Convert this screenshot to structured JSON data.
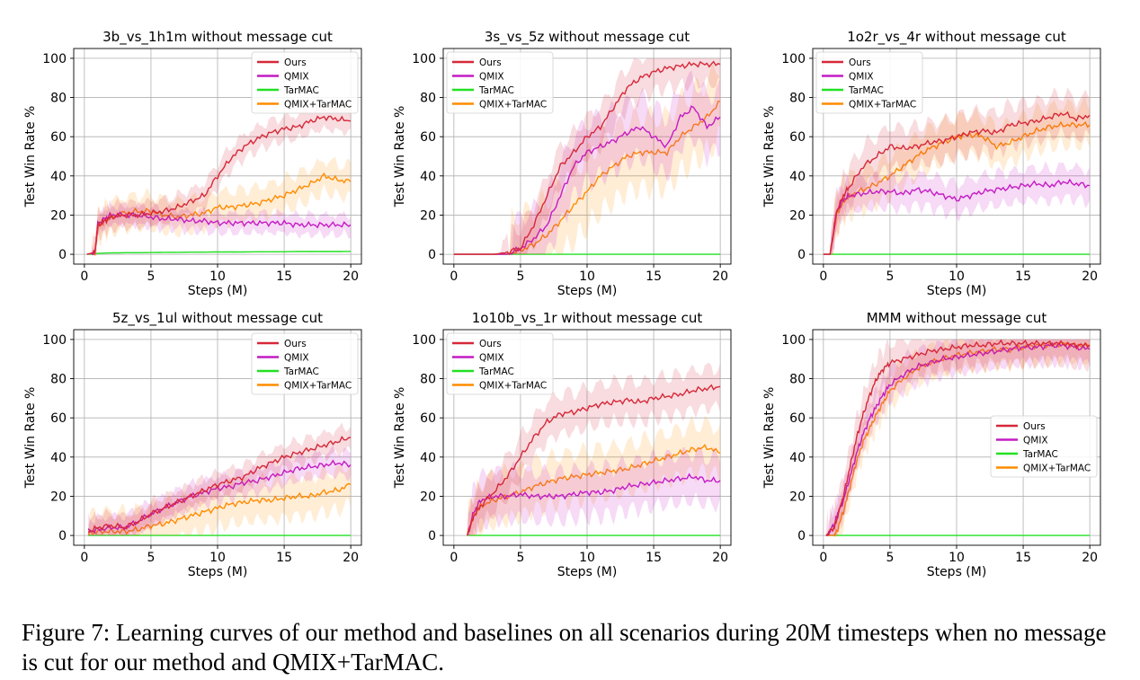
{
  "figure": {
    "caption": "Figure 7: Learning curves of our method and baselines on all scenarios during 20M timesteps when no message is cut for our method and QMIX+TarMAC."
  },
  "colors": {
    "Ours": "#d62839",
    "QMIX": "#c41bc4",
    "TarMAC": "#22e022",
    "QMIX+TarMAC": "#ff8c00"
  },
  "chart_data": [
    {
      "type": "line",
      "title": "3b_vs_1h1m without message cut",
      "xlabel": "Steps (M)",
      "ylabel": "Test Win Rate %",
      "xlim": [
        -0.8,
        20.8
      ],
      "ylim": [
        -5,
        105
      ],
      "xticks": [
        0,
        5,
        10,
        15,
        20
      ],
      "yticks": [
        0,
        20,
        40,
        60,
        80,
        100
      ],
      "grid": true,
      "legend": "top-right",
      "x": [
        0.2,
        0.8,
        1.0,
        1.5,
        2,
        3,
        4,
        5,
        6,
        7,
        8,
        9,
        10,
        11,
        12,
        13,
        14,
        15,
        16,
        17,
        18,
        19,
        20
      ],
      "series": [
        {
          "name": "Ours",
          "values": [
            0,
            1,
            15,
            17,
            19,
            20,
            20,
            21,
            22,
            24,
            27,
            30,
            40,
            49,
            55,
            59,
            62,
            64,
            65,
            68,
            70,
            69,
            68
          ],
          "band": 6
        },
        {
          "name": "QMIX",
          "values": [
            0,
            1,
            15,
            18,
            20,
            20,
            20,
            19,
            18,
            18,
            17,
            17,
            16,
            16,
            16,
            16,
            16,
            16,
            15,
            15,
            15,
            15,
            15
          ],
          "band": 5
        },
        {
          "name": "TarMAC",
          "values": [
            0,
            0,
            0.5,
            0.6,
            0.7,
            0.8,
            0.8,
            0.9,
            1.0,
            1.0,
            1.1,
            1.1,
            1.2,
            1.2,
            1.2,
            1.3,
            1.3,
            1.3,
            1.4,
            1.4,
            1.4,
            1.4,
            1.5
          ],
          "band": 0.3
        },
        {
          "name": "QMIX+TarMAC",
          "values": [
            0,
            1,
            13,
            17,
            19,
            21,
            22,
            22,
            20,
            19,
            20,
            21,
            24,
            24,
            25,
            26,
            28,
            30,
            33,
            36,
            40,
            38,
            37
          ],
          "band": 8
        }
      ]
    },
    {
      "type": "line",
      "title": "3s_vs_5z without message cut",
      "xlabel": "Steps (M)",
      "ylabel": "Test Win Rate %",
      "xlim": [
        -0.8,
        20.8
      ],
      "ylim": [
        -5,
        105
      ],
      "xticks": [
        0,
        5,
        10,
        15,
        20
      ],
      "yticks": [
        0,
        20,
        40,
        60,
        80,
        100
      ],
      "grid": true,
      "legend": "top-left",
      "x": [
        0,
        1,
        2,
        3,
        4,
        5,
        6,
        7,
        8,
        9,
        10,
        11,
        12,
        13,
        14,
        15,
        16,
        17,
        18,
        19,
        20
      ],
      "series": [
        {
          "name": "Ours",
          "values": [
            0,
            0,
            0,
            0,
            1,
            3,
            15,
            30,
            45,
            52,
            60,
            65,
            75,
            85,
            90,
            93,
            95,
            96,
            97,
            97,
            97
          ],
          "band": 10
        },
        {
          "name": "QMIX",
          "values": [
            0,
            0,
            0,
            0,
            0,
            3,
            8,
            15,
            30,
            45,
            52,
            55,
            58,
            62,
            65,
            60,
            55,
            70,
            75,
            65,
            70
          ],
          "band": 15
        },
        {
          "name": "QMIX+TarMAC",
          "values": [
            0,
            0,
            0,
            0,
            0,
            2,
            5,
            10,
            17,
            25,
            32,
            40,
            45,
            50,
            52,
            52,
            52,
            60,
            65,
            70,
            78
          ],
          "band": 18
        },
        {
          "name": "TarMAC",
          "values": [
            0,
            0,
            0,
            0,
            0,
            0,
            0,
            0,
            0,
            0,
            0,
            0,
            0,
            0,
            0,
            0,
            0,
            0,
            0,
            0,
            0
          ],
          "band": 0
        }
      ]
    },
    {
      "type": "line",
      "title": "1o2r_vs_4r without message cut",
      "xlabel": "Steps (M)",
      "ylabel": "Test Win Rate %",
      "xlim": [
        -0.8,
        20.8
      ],
      "ylim": [
        -5,
        105
      ],
      "xticks": [
        0,
        5,
        10,
        15,
        20
      ],
      "yticks": [
        0,
        20,
        40,
        60,
        80,
        100
      ],
      "grid": true,
      "legend": "top-left",
      "x": [
        0,
        0.5,
        1,
        1.5,
        2,
        3,
        4,
        5,
        6,
        7,
        8,
        9,
        10,
        11,
        12,
        13,
        14,
        15,
        16,
        17,
        18,
        19,
        20
      ],
      "series": [
        {
          "name": "Ours",
          "values": [
            0,
            0,
            22,
            30,
            35,
            45,
            50,
            55,
            54,
            55,
            57,
            58,
            60,
            62,
            63,
            62,
            66,
            67,
            68,
            70,
            72,
            69,
            71
          ],
          "band": 10
        },
        {
          "name": "QMIX",
          "values": [
            0,
            0,
            22,
            28,
            30,
            31,
            32,
            32,
            31,
            33,
            32,
            30,
            28,
            30,
            32,
            33,
            34,
            35,
            36,
            35,
            37,
            36,
            35
          ],
          "band": 8
        },
        {
          "name": "QMIX+TarMAC",
          "values": [
            0,
            0,
            20,
            27,
            30,
            33,
            36,
            40,
            45,
            50,
            54,
            57,
            60,
            61,
            60,
            55,
            57,
            60,
            63,
            65,
            66,
            66,
            66
          ],
          "band": 10
        },
        {
          "name": "TarMAC",
          "values": [
            0,
            0,
            0,
            0,
            0,
            0,
            0,
            0,
            0,
            0,
            0,
            0,
            0,
            0,
            0,
            0,
            0,
            0,
            0,
            0,
            0,
            0,
            0
          ],
          "band": 0
        }
      ]
    },
    {
      "type": "line",
      "title": "5z_vs_1ul without message cut",
      "xlabel": "Steps (M)",
      "ylabel": "Test Win Rate %",
      "xlim": [
        -0.8,
        20.8
      ],
      "ylim": [
        -5,
        105
      ],
      "xticks": [
        0,
        5,
        10,
        15,
        20
      ],
      "yticks": [
        0,
        20,
        40,
        60,
        80,
        100
      ],
      "grid": true,
      "legend": "top-right",
      "x": [
        0.3,
        1,
        2,
        3,
        4,
        5,
        6,
        7,
        8,
        9,
        10,
        11,
        12,
        13,
        14,
        15,
        16,
        17,
        18,
        19,
        20
      ],
      "series": [
        {
          "name": "Ours",
          "values": [
            2,
            4,
            5,
            4,
            7,
            11,
            14,
            17,
            20,
            23,
            26,
            28,
            30,
            34,
            37,
            40,
            42,
            44,
            46,
            48,
            50
          ],
          "band": 6
        },
        {
          "name": "QMIX",
          "values": [
            2,
            3,
            4,
            4,
            7,
            11,
            14,
            17,
            20,
            22,
            24,
            25,
            27,
            28,
            30,
            32,
            34,
            35,
            36,
            37,
            36
          ],
          "band": 6
        },
        {
          "name": "QMIX+TarMAC",
          "values": [
            1,
            2,
            2,
            2,
            3,
            5,
            6,
            8,
            10,
            12,
            14,
            16,
            17,
            18,
            18,
            19,
            20,
            20,
            22,
            23,
            26
          ],
          "band": 10
        },
        {
          "name": "TarMAC",
          "values": [
            0,
            0,
            0,
            0,
            0,
            0,
            0,
            0,
            0,
            0,
            0,
            0,
            0,
            0,
            0,
            0,
            0,
            0,
            0,
            0,
            0
          ],
          "band": 0
        }
      ]
    },
    {
      "type": "line",
      "title": "1o10b_vs_1r without message cut",
      "xlabel": "Steps (M)",
      "ylabel": "Test Win Rate %",
      "xlim": [
        -0.8,
        20.8
      ],
      "ylim": [
        -5,
        105
      ],
      "xticks": [
        0,
        5,
        10,
        15,
        20
      ],
      "yticks": [
        0,
        20,
        40,
        60,
        80,
        100
      ],
      "grid": true,
      "legend": "top-left",
      "x": [
        1,
        1.5,
        2,
        3,
        4,
        5,
        6,
        7,
        8,
        9,
        10,
        11,
        12,
        13,
        14,
        15,
        16,
        17,
        18,
        19,
        20
      ],
      "series": [
        {
          "name": "Ours",
          "values": [
            0,
            10,
            15,
            22,
            30,
            40,
            50,
            58,
            62,
            63,
            65,
            67,
            68,
            69,
            68,
            70,
            71,
            72,
            74,
            75,
            76
          ],
          "band": 10
        },
        {
          "name": "QMIX",
          "values": [
            0,
            12,
            18,
            20,
            20,
            21,
            20,
            20,
            20,
            21,
            22,
            22,
            23,
            25,
            26,
            27,
            28,
            29,
            30,
            28,
            28
          ],
          "band": 12
        },
        {
          "name": "QMIX+TarMAC",
          "values": [
            0,
            10,
            15,
            18,
            20,
            22,
            25,
            27,
            29,
            30,
            31,
            32,
            33,
            34,
            36,
            38,
            40,
            42,
            44,
            45,
            42
          ],
          "band": 12
        },
        {
          "name": "TarMAC",
          "values": [
            0,
            0,
            0,
            0,
            0,
            0,
            0,
            0,
            0,
            0,
            0,
            0,
            0,
            0,
            0,
            0,
            0,
            0,
            0,
            0,
            0
          ],
          "band": 0
        }
      ]
    },
    {
      "type": "line",
      "title": "MMM without message cut",
      "xlabel": "Steps (M)",
      "ylabel": "Test Win Rate %",
      "xlim": [
        -0.8,
        20.8
      ],
      "ylim": [
        -5,
        105
      ],
      "xticks": [
        0,
        5,
        10,
        15,
        20
      ],
      "yticks": [
        0,
        20,
        40,
        60,
        80,
        100
      ],
      "grid": true,
      "legend": "center-right",
      "x": [
        0.2,
        0.8,
        1,
        1.5,
        2,
        2.5,
        3,
        3.5,
        4,
        4.5,
        5,
        6,
        7,
        8,
        9,
        10,
        11,
        12,
        13,
        14,
        15,
        16,
        17,
        18,
        19,
        20
      ],
      "series": [
        {
          "name": "Ours",
          "values": [
            0,
            4,
            8,
            20,
            35,
            50,
            62,
            72,
            80,
            85,
            88,
            90,
            92,
            94,
            95,
            96,
            97,
            97,
            98,
            98,
            98,
            98,
            98,
            98,
            97,
            97
          ],
          "band": 10
        },
        {
          "name": "QMIX",
          "values": [
            0,
            5,
            10,
            18,
            30,
            42,
            52,
            60,
            66,
            72,
            77,
            82,
            86,
            88,
            90,
            91,
            92,
            93,
            94,
            95,
            96,
            96,
            97,
            97,
            96,
            95
          ],
          "band": 8
        },
        {
          "name": "QMIX+TarMAC",
          "values": [
            0,
            0,
            2,
            12,
            25,
            38,
            48,
            55,
            62,
            68,
            74,
            80,
            85,
            88,
            90,
            92,
            93,
            94,
            95,
            95,
            96,
            97,
            97,
            98,
            97,
            97
          ],
          "band": 8
        },
        {
          "name": "TarMAC",
          "values": [
            0,
            0,
            0,
            0,
            0,
            0,
            0,
            0,
            0,
            0,
            0,
            0,
            0,
            0,
            0,
            0,
            0,
            0,
            0,
            0,
            0,
            0,
            0,
            0,
            0,
            0
          ],
          "band": 0
        }
      ]
    }
  ]
}
